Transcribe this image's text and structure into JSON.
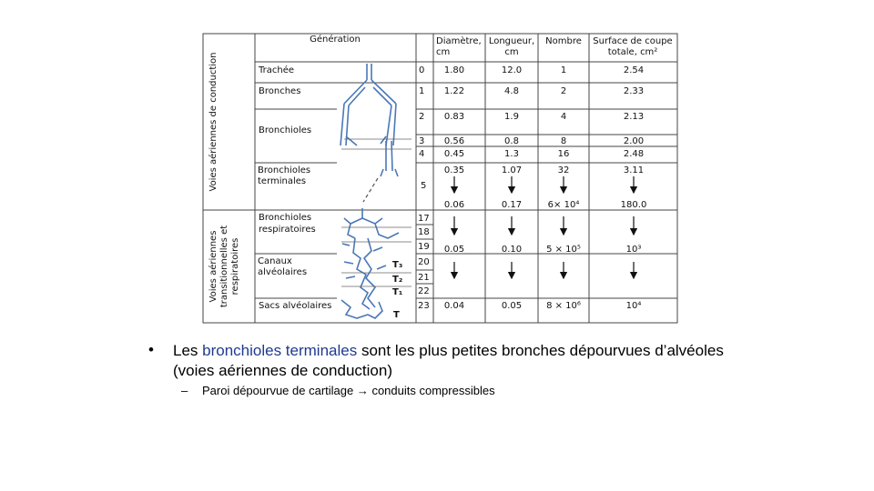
{
  "table": {
    "header": {
      "generation": "Génération",
      "diametre": [
        "Diamètre,",
        "cm"
      ],
      "longueur": [
        "Longueur,",
        "cm"
      ],
      "nombre": "Nombre",
      "surface": [
        "Surface de coupe",
        "totale, cm²"
      ]
    },
    "zone_conduction": "Voies aériennes de conduction",
    "zone_transition": [
      "Voies aériennes",
      "transitionnelles et",
      "respiratoires"
    ],
    "rows": [
      {
        "name": [
          "Trachée"
        ],
        "gen": [
          "0"
        ],
        "diam": [
          "1.80"
        ],
        "long": [
          "12.0"
        ],
        "nombre": [
          "1"
        ],
        "surface": [
          "2.54"
        ]
      },
      {
        "name": [
          "Bronches"
        ],
        "gen": [
          "1"
        ],
        "diam": [
          "1.22"
        ],
        "long": [
          "4.8"
        ],
        "nombre": [
          "2"
        ],
        "surface": [
          "2.33"
        ]
      },
      {
        "name": [
          "Bronchioles"
        ],
        "gen": [
          "2",
          "3",
          "4"
        ],
        "diam": [
          "0.83",
          "0.56",
          "0.45"
        ],
        "long": [
          "1.9",
          "0.8",
          "1.3"
        ],
        "nombre": [
          "4",
          "8",
          "16"
        ],
        "surface": [
          "2.13",
          "2.00",
          "2.48"
        ]
      },
      {
        "name": [
          "Bronchioles",
          "terminales"
        ],
        "gen": [
          "5"
        ],
        "diam": [
          "0.35",
          "0.06"
        ],
        "long": [
          "1.07",
          "0.17"
        ],
        "nombre": [
          "32",
          "6× 10⁴"
        ],
        "surface": [
          "3.11",
          "180.0"
        ]
      },
      {
        "name": [
          "Bronchioles",
          "respiratoires"
        ],
        "gen": [
          "17",
          "18",
          "19"
        ],
        "diam": [
          "0.05"
        ],
        "long": [
          "0.10"
        ],
        "nombre": [
          "5 × 10⁵"
        ],
        "surface": [
          "10³"
        ]
      },
      {
        "name": [
          "Canaux",
          "alvéolaires"
        ],
        "gen": [
          "20",
          "21",
          "22"
        ],
        "tlabels": [
          "T₃",
          "T₂",
          "T₁"
        ]
      },
      {
        "name": [
          "Sacs alvéolaires"
        ],
        "gen": [
          "23"
        ],
        "tlabel": "T",
        "diam": [
          "0.04"
        ],
        "long": [
          "0.05"
        ],
        "nombre": [
          "8 × 10⁶"
        ],
        "surface": [
          "10⁴"
        ]
      }
    ]
  },
  "bullet": {
    "marker": "•",
    "highlight": "bronchioles terminales",
    "line1_prefix": "Les ",
    "line1_suffix": " sont les plus petites bronches dépourvues d’alvéoles",
    "line2": "(voies aériennes de conduction)",
    "sub_marker": "–",
    "sub_prefix": "Paroi dépourvue de cartilage ",
    "sub_arrow": "→",
    "sub_suffix": " conduits compressibles"
  },
  "colors": {
    "airway": "#4a78b8",
    "highlight": "#1f3a93",
    "grid": "#444444"
  }
}
